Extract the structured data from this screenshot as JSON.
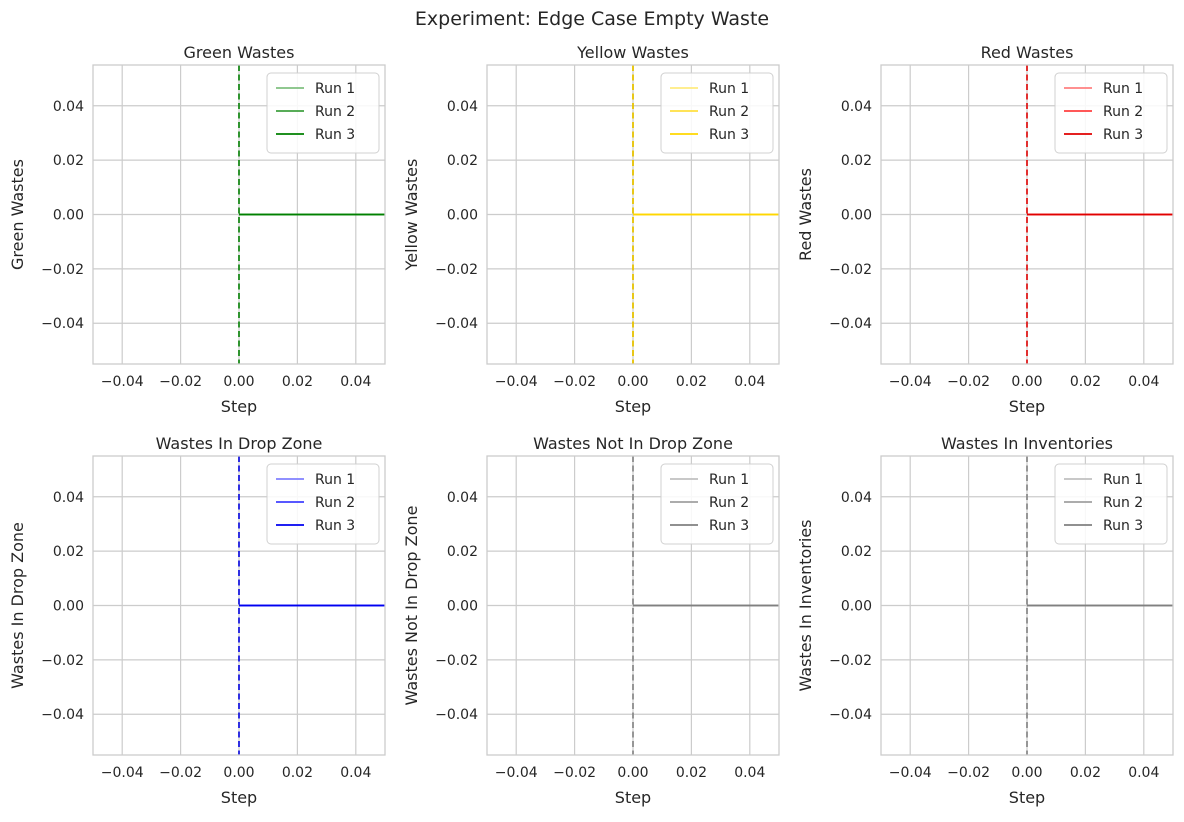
{
  "figure": {
    "suptitle": "Experiment: Edge Case Empty Waste"
  },
  "chart_data": [
    {
      "type": "line",
      "title": "Green Wastes",
      "xlabel": "Step",
      "ylabel": "Green Wastes",
      "xlim": [
        -0.05,
        0.05
      ],
      "ylim": [
        -0.055,
        0.055
      ],
      "xticks": [
        -0.04,
        -0.02,
        0.0,
        0.02,
        0.04
      ],
      "xtick_labels": [
        "−0.04",
        "−0.02",
        "0.00",
        "0.02",
        "0.04"
      ],
      "yticks": [
        0.04,
        0.02,
        0.0,
        -0.02,
        -0.04
      ],
      "ytick_labels": [
        "0.04",
        "0.02",
        "0.00",
        "−0.02",
        "−0.04"
      ],
      "grid": true,
      "legend": "top-right",
      "vline": {
        "x": 0.0,
        "style": "dashed",
        "color": "#1a8a1a"
      },
      "series": [
        {
          "name": "Run 1",
          "x": [
            0.0,
            0.05
          ],
          "y": [
            0.0,
            0.0
          ],
          "color": "#80c080"
        },
        {
          "name": "Run 2",
          "x": [
            0.0,
            0.05
          ],
          "y": [
            0.0,
            0.0
          ],
          "color": "#40a040"
        },
        {
          "name": "Run 3",
          "x": [
            0.0,
            0.05
          ],
          "y": [
            0.0,
            0.0
          ],
          "color": "#008000"
        }
      ]
    },
    {
      "type": "line",
      "title": "Yellow Wastes",
      "xlabel": "Step",
      "ylabel": "Yellow Wastes",
      "xlim": [
        -0.05,
        0.05
      ],
      "ylim": [
        -0.055,
        0.055
      ],
      "xticks": [
        -0.04,
        -0.02,
        0.0,
        0.02,
        0.04
      ],
      "xtick_labels": [
        "−0.04",
        "−0.02",
        "0.00",
        "0.02",
        "0.04"
      ],
      "yticks": [
        0.04,
        0.02,
        0.0,
        -0.02,
        -0.04
      ],
      "ytick_labels": [
        "0.04",
        "0.02",
        "0.00",
        "−0.02",
        "−0.04"
      ],
      "grid": true,
      "legend": "top-right",
      "vline": {
        "x": 0.0,
        "style": "dashed",
        "color": "#e6c200"
      },
      "series": [
        {
          "name": "Run 1",
          "x": [
            0.0,
            0.05
          ],
          "y": [
            0.0,
            0.0
          ],
          "color": "#ffeb80"
        },
        {
          "name": "Run 2",
          "x": [
            0.0,
            0.05
          ],
          "y": [
            0.0,
            0.0
          ],
          "color": "#ffdf40"
        },
        {
          "name": "Run 3",
          "x": [
            0.0,
            0.05
          ],
          "y": [
            0.0,
            0.0
          ],
          "color": "#ffd700"
        }
      ]
    },
    {
      "type": "line",
      "title": "Red Wastes",
      "xlabel": "Step",
      "ylabel": "Red Wastes",
      "xlim": [
        -0.05,
        0.05
      ],
      "ylim": [
        -0.055,
        0.055
      ],
      "xticks": [
        -0.04,
        -0.02,
        0.0,
        0.02,
        0.04
      ],
      "xtick_labels": [
        "−0.04",
        "−0.02",
        "0.00",
        "0.02",
        "0.04"
      ],
      "yticks": [
        0.04,
        0.02,
        0.0,
        -0.02,
        -0.04
      ],
      "ytick_labels": [
        "0.04",
        "0.02",
        "0.00",
        "−0.02",
        "−0.04"
      ],
      "grid": true,
      "legend": "top-right",
      "vline": {
        "x": 0.0,
        "style": "dashed",
        "color": "#e01a1a"
      },
      "series": [
        {
          "name": "Run 1",
          "x": [
            0.0,
            0.05
          ],
          "y": [
            0.0,
            0.0
          ],
          "color": "#ff8080"
        },
        {
          "name": "Run 2",
          "x": [
            0.0,
            0.05
          ],
          "y": [
            0.0,
            0.0
          ],
          "color": "#ff4040"
        },
        {
          "name": "Run 3",
          "x": [
            0.0,
            0.05
          ],
          "y": [
            0.0,
            0.0
          ],
          "color": "#e00000"
        }
      ]
    },
    {
      "type": "line",
      "title": "Wastes In Drop Zone",
      "xlabel": "Step",
      "ylabel": "Wastes In Drop Zone",
      "xlim": [
        -0.05,
        0.05
      ],
      "ylim": [
        -0.055,
        0.055
      ],
      "xticks": [
        -0.04,
        -0.02,
        0.0,
        0.02,
        0.04
      ],
      "xtick_labels": [
        "−0.04",
        "−0.02",
        "0.00",
        "0.02",
        "0.04"
      ],
      "yticks": [
        0.04,
        0.02,
        0.0,
        -0.02,
        -0.04
      ],
      "ytick_labels": [
        "0.04",
        "0.02",
        "0.00",
        "−0.02",
        "−0.04"
      ],
      "grid": true,
      "legend": "top-right",
      "vline": {
        "x": 0.0,
        "style": "dashed",
        "color": "#1a1ae0"
      },
      "series": [
        {
          "name": "Run 1",
          "x": [
            0.0,
            0.05
          ],
          "y": [
            0.0,
            0.0
          ],
          "color": "#8080ff"
        },
        {
          "name": "Run 2",
          "x": [
            0.0,
            0.05
          ],
          "y": [
            0.0,
            0.0
          ],
          "color": "#4040ff"
        },
        {
          "name": "Run 3",
          "x": [
            0.0,
            0.05
          ],
          "y": [
            0.0,
            0.0
          ],
          "color": "#0000f0"
        }
      ]
    },
    {
      "type": "line",
      "title": "Wastes Not In Drop Zone",
      "xlabel": "Step",
      "ylabel": "Wastes Not In Drop Zone",
      "xlim": [
        -0.05,
        0.05
      ],
      "ylim": [
        -0.055,
        0.055
      ],
      "xticks": [
        -0.04,
        -0.02,
        0.0,
        0.02,
        0.04
      ],
      "xtick_labels": [
        "−0.04",
        "−0.02",
        "0.00",
        "0.02",
        "0.04"
      ],
      "yticks": [
        0.04,
        0.02,
        0.0,
        -0.02,
        -0.04
      ],
      "ytick_labels": [
        "0.04",
        "0.02",
        "0.00",
        "−0.02",
        "−0.04"
      ],
      "grid": true,
      "legend": "top-right",
      "vline": {
        "x": 0.0,
        "style": "dashed",
        "color": "#8c8c8c"
      },
      "series": [
        {
          "name": "Run 1",
          "x": [
            0.0,
            0.05
          ],
          "y": [
            0.0,
            0.0
          ],
          "color": "#c0c0c0"
        },
        {
          "name": "Run 2",
          "x": [
            0.0,
            0.05
          ],
          "y": [
            0.0,
            0.0
          ],
          "color": "#a0a0a0"
        },
        {
          "name": "Run 3",
          "x": [
            0.0,
            0.05
          ],
          "y": [
            0.0,
            0.0
          ],
          "color": "#808080"
        }
      ]
    },
    {
      "type": "line",
      "title": "Wastes In Inventories",
      "xlabel": "Step",
      "ylabel": "Wastes In Inventories",
      "xlim": [
        -0.05,
        0.05
      ],
      "ylim": [
        -0.055,
        0.055
      ],
      "xticks": [
        -0.04,
        -0.02,
        0.0,
        0.02,
        0.04
      ],
      "xtick_labels": [
        "−0.04",
        "−0.02",
        "0.00",
        "0.02",
        "0.04"
      ],
      "yticks": [
        0.04,
        0.02,
        0.0,
        -0.02,
        -0.04
      ],
      "ytick_labels": [
        "0.04",
        "0.02",
        "0.00",
        "−0.02",
        "−0.04"
      ],
      "grid": true,
      "legend": "top-right",
      "vline": {
        "x": 0.0,
        "style": "dashed",
        "color": "#8c8c8c"
      },
      "series": [
        {
          "name": "Run 1",
          "x": [
            0.0,
            0.05
          ],
          "y": [
            0.0,
            0.0
          ],
          "color": "#c0c0c0"
        },
        {
          "name": "Run 2",
          "x": [
            0.0,
            0.05
          ],
          "y": [
            0.0,
            0.0
          ],
          "color": "#a0a0a0"
        },
        {
          "name": "Run 3",
          "x": [
            0.0,
            0.05
          ],
          "y": [
            0.0,
            0.0
          ],
          "color": "#808080"
        }
      ]
    }
  ]
}
